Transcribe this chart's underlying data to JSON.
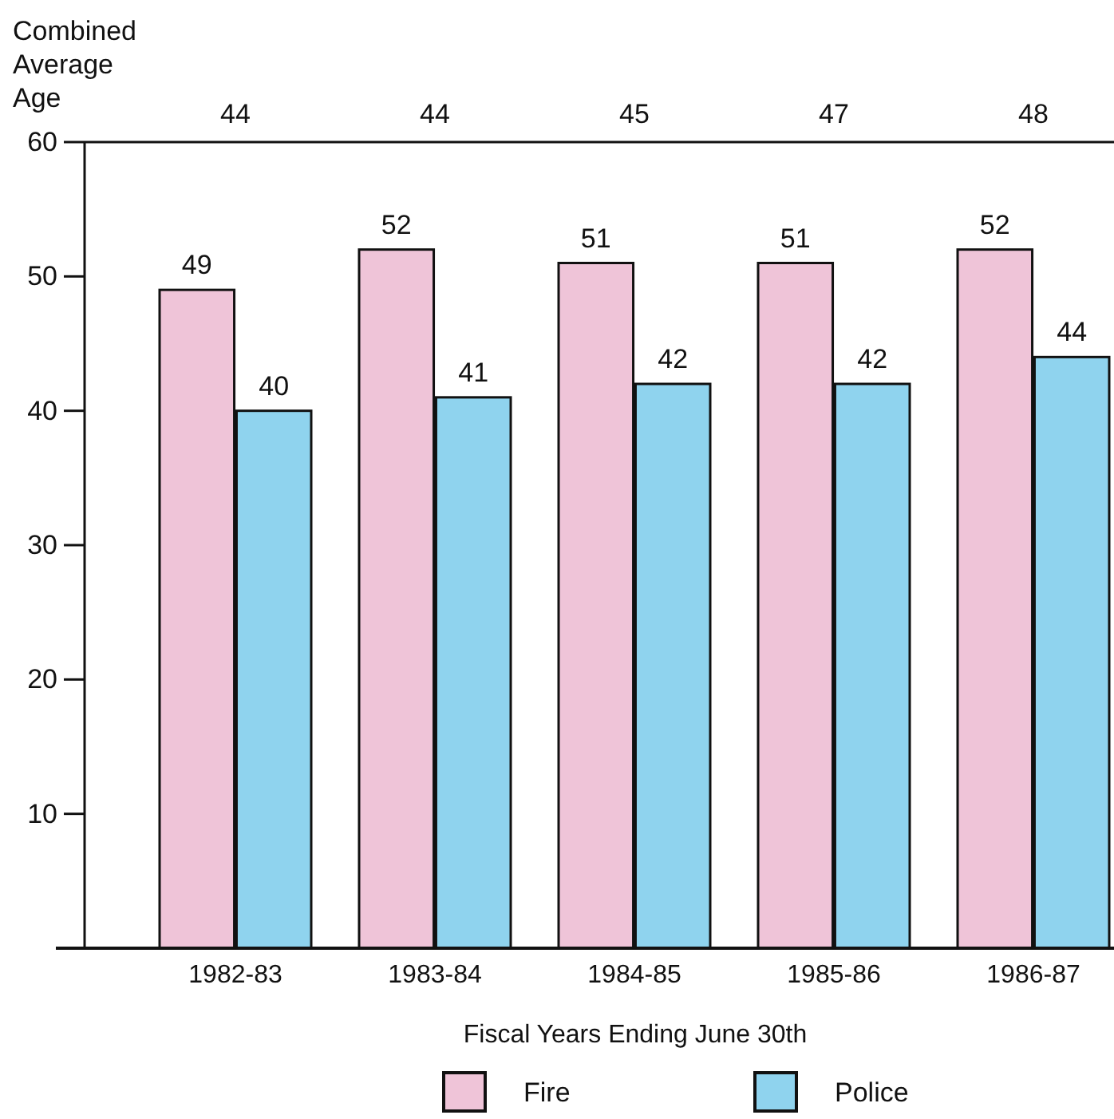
{
  "chart_data": {
    "type": "bar",
    "categories": [
      "1982-83",
      "1983-84",
      "1984-85",
      "1985-86",
      "1986-87"
    ],
    "series": [
      {
        "name": "Fire",
        "color": "#efc4d8",
        "values": [
          49,
          52,
          51,
          51,
          52
        ]
      },
      {
        "name": "Police",
        "color": "#8fd3ee",
        "values": [
          40,
          41,
          42,
          42,
          44
        ]
      }
    ],
    "xlabel": "Fiscal Years Ending June 30th",
    "ylim": [
      0,
      60
    ],
    "yticks": [
      10,
      20,
      30,
      40,
      50,
      60
    ],
    "data_labels": true,
    "legend": "bottom",
    "annotations": [
      "Combined Average Age",
      "44",
      "44",
      "45",
      "47",
      "48"
    ]
  }
}
